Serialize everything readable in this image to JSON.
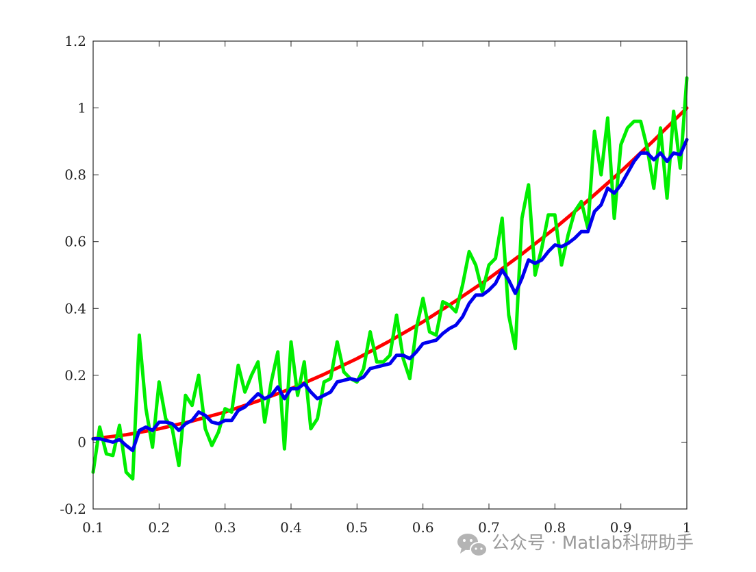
{
  "chart_data": {
    "type": "line",
    "title": "",
    "xlabel": "",
    "ylabel": "",
    "xlim": [
      0.1,
      1.0
    ],
    "ylim": [
      -0.2,
      1.2
    ],
    "grid": false,
    "x_ticks": [
      0.1,
      0.2,
      0.3,
      0.4,
      0.5,
      0.6,
      0.7,
      0.8,
      0.9,
      1.0
    ],
    "x_tick_labels": [
      "0.1",
      "0.2",
      "0.3",
      "0.4",
      "0.5",
      "0.6",
      "0.7",
      "0.8",
      "0.9",
      "1"
    ],
    "y_ticks": [
      -0.2,
      0,
      0.2,
      0.4,
      0.6,
      0.8,
      1.0,
      1.2
    ],
    "y_tick_labels": [
      "-0.2",
      "0",
      "0.2",
      "0.4",
      "0.6",
      "0.8",
      "1",
      "1.2"
    ],
    "series": [
      {
        "color": "#ff0000",
        "x": [
          0.1,
          0.15,
          0.2,
          0.25,
          0.3,
          0.35,
          0.4,
          0.45,
          0.5,
          0.55,
          0.6,
          0.65,
          0.7,
          0.75,
          0.8,
          0.85,
          0.9,
          0.95,
          1.0
        ],
        "values": [
          0.01,
          0.022,
          0.04,
          0.063,
          0.09,
          0.123,
          0.16,
          0.203,
          0.25,
          0.303,
          0.36,
          0.423,
          0.49,
          0.563,
          0.64,
          0.723,
          0.81,
          0.903,
          1.0
        ]
      },
      {
        "color": "#00ee00",
        "x": [
          0.1,
          0.11,
          0.12,
          0.13,
          0.14,
          0.15,
          0.16,
          0.17,
          0.18,
          0.19,
          0.2,
          0.21,
          0.22,
          0.23,
          0.24,
          0.25,
          0.26,
          0.27,
          0.28,
          0.29,
          0.3,
          0.31,
          0.32,
          0.33,
          0.34,
          0.35,
          0.36,
          0.37,
          0.38,
          0.39,
          0.4,
          0.41,
          0.42,
          0.43,
          0.44,
          0.45,
          0.46,
          0.47,
          0.48,
          0.49,
          0.5,
          0.51,
          0.52,
          0.53,
          0.54,
          0.55,
          0.56,
          0.57,
          0.58,
          0.59,
          0.6,
          0.61,
          0.62,
          0.63,
          0.64,
          0.65,
          0.66,
          0.67,
          0.68,
          0.69,
          0.7,
          0.71,
          0.72,
          0.73,
          0.74,
          0.75,
          0.76,
          0.77,
          0.78,
          0.79,
          0.8,
          0.81,
          0.82,
          0.83,
          0.84,
          0.85,
          0.86,
          0.87,
          0.88,
          0.89,
          0.9,
          0.91,
          0.92,
          0.93,
          0.94,
          0.95,
          0.96,
          0.97,
          0.98,
          0.99,
          1.0
        ],
        "values": [
          -0.09,
          0.045,
          -0.035,
          -0.04,
          0.05,
          -0.09,
          -0.11,
          0.32,
          0.1,
          -0.015,
          0.18,
          0.07,
          0.04,
          -0.07,
          0.14,
          0.11,
          0.2,
          0.04,
          -0.01,
          0.03,
          0.1,
          0.09,
          0.23,
          0.15,
          0.2,
          0.24,
          0.06,
          0.18,
          0.27,
          -0.02,
          0.3,
          0.14,
          0.24,
          0.04,
          0.07,
          0.18,
          0.19,
          0.3,
          0.21,
          0.19,
          0.18,
          0.22,
          0.33,
          0.24,
          0.24,
          0.26,
          0.38,
          0.25,
          0.19,
          0.34,
          0.43,
          0.33,
          0.32,
          0.42,
          0.41,
          0.39,
          0.47,
          0.57,
          0.53,
          0.45,
          0.53,
          0.55,
          0.67,
          0.38,
          0.28,
          0.67,
          0.77,
          0.5,
          0.58,
          0.68,
          0.68,
          0.53,
          0.62,
          0.69,
          0.72,
          0.64,
          0.93,
          0.8,
          0.97,
          0.67,
          0.89,
          0.94,
          0.96,
          0.96,
          0.88,
          0.76,
          0.94,
          0.73,
          0.99,
          0.82,
          1.09
        ]
      },
      {
        "color": "#0000ee",
        "x": [
          0.1,
          0.11,
          0.12,
          0.13,
          0.14,
          0.15,
          0.16,
          0.17,
          0.18,
          0.19,
          0.2,
          0.21,
          0.22,
          0.23,
          0.24,
          0.25,
          0.26,
          0.27,
          0.28,
          0.29,
          0.3,
          0.31,
          0.32,
          0.33,
          0.34,
          0.35,
          0.36,
          0.37,
          0.38,
          0.39,
          0.4,
          0.41,
          0.42,
          0.43,
          0.44,
          0.45,
          0.46,
          0.47,
          0.48,
          0.49,
          0.5,
          0.51,
          0.52,
          0.53,
          0.54,
          0.55,
          0.56,
          0.57,
          0.58,
          0.59,
          0.6,
          0.61,
          0.62,
          0.63,
          0.64,
          0.65,
          0.66,
          0.67,
          0.68,
          0.69,
          0.7,
          0.71,
          0.72,
          0.73,
          0.74,
          0.75,
          0.76,
          0.77,
          0.78,
          0.79,
          0.8,
          0.81,
          0.82,
          0.83,
          0.84,
          0.85,
          0.86,
          0.87,
          0.88,
          0.89,
          0.9,
          0.91,
          0.92,
          0.93,
          0.94,
          0.95,
          0.96,
          0.97,
          0.98,
          0.99,
          1.0
        ],
        "values": [
          0.01,
          0.01,
          0.005,
          0.0,
          0.008,
          -0.01,
          -0.025,
          0.035,
          0.045,
          0.035,
          0.06,
          0.06,
          0.055,
          0.035,
          0.055,
          0.065,
          0.09,
          0.08,
          0.06,
          0.055,
          0.065,
          0.065,
          0.095,
          0.105,
          0.125,
          0.145,
          0.13,
          0.14,
          0.165,
          0.13,
          0.16,
          0.16,
          0.175,
          0.15,
          0.13,
          0.14,
          0.15,
          0.18,
          0.185,
          0.19,
          0.185,
          0.195,
          0.22,
          0.225,
          0.23,
          0.235,
          0.26,
          0.26,
          0.25,
          0.27,
          0.295,
          0.3,
          0.305,
          0.325,
          0.34,
          0.35,
          0.375,
          0.415,
          0.44,
          0.44,
          0.455,
          0.475,
          0.515,
          0.485,
          0.445,
          0.49,
          0.545,
          0.535,
          0.545,
          0.57,
          0.59,
          0.585,
          0.595,
          0.61,
          0.63,
          0.63,
          0.69,
          0.71,
          0.76,
          0.745,
          0.77,
          0.805,
          0.84,
          0.865,
          0.865,
          0.845,
          0.865,
          0.84,
          0.865,
          0.86,
          0.905
        ]
      }
    ]
  },
  "watermark": {
    "text": "公众号 · Matlab科研助手",
    "icon": "wechat-icon",
    "color": "#9a9a9a"
  }
}
